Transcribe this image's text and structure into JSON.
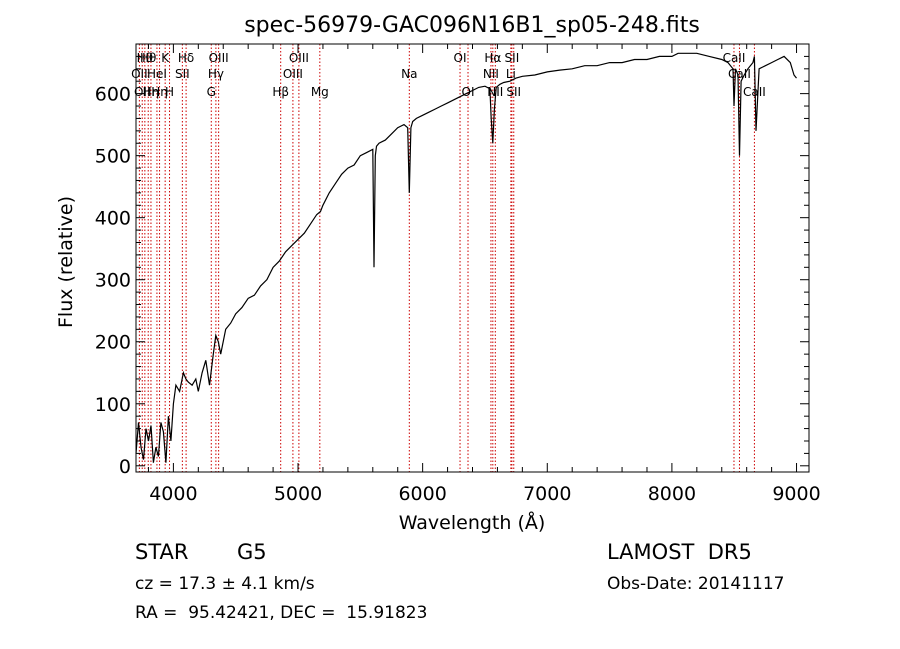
{
  "chart_data": {
    "type": "line",
    "title": "spec-56979-GAC096N16B1_sp05-248.fits",
    "xlabel": "Wavelength (Å)",
    "ylabel": "Flux (relative)",
    "xlim": [
      3700,
      9100
    ],
    "ylim": [
      -10,
      680
    ],
    "xticks": [
      4000,
      5000,
      6000,
      7000,
      8000,
      9000
    ],
    "yticks": [
      0,
      100,
      200,
      300,
      400,
      500,
      600
    ],
    "grid": false,
    "series": [
      {
        "x": [
          3700,
          3720,
          3740,
          3760,
          3780,
          3800,
          3820,
          3840,
          3860,
          3880,
          3900,
          3920,
          3940,
          3960,
          3980,
          4000,
          4020,
          4050,
          4080,
          4100,
          4120,
          4150,
          4180,
          4200,
          4230,
          4260,
          4290,
          4320,
          4340,
          4360,
          4380,
          4420,
          4460,
          4500,
          4550,
          4600,
          4650,
          4700,
          4750,
          4800,
          4850,
          4900,
          4950,
          5000,
          5050,
          5100,
          5150,
          5180,
          5200,
          5250,
          5300,
          5350,
          5400,
          5450,
          5500,
          5550,
          5600,
          5610,
          5620,
          5630,
          5650,
          5700,
          5750,
          5800,
          5850,
          5880,
          5893,
          5906,
          5920,
          5950,
          6000,
          6050,
          6100,
          6150,
          6200,
          6250,
          6300,
          6350,
          6400,
          6450,
          6500,
          6540,
          6550,
          6563,
          6576,
          6590,
          6620,
          6650,
          6700,
          6750,
          6800,
          6900,
          7000,
          7100,
          7200,
          7300,
          7400,
          7500,
          7600,
          7700,
          7800,
          7900,
          8000,
          8050,
          8100,
          8200,
          8300,
          8400,
          8450,
          8490,
          8498,
          8510,
          8530,
          8542,
          8555,
          8580,
          8610,
          8650,
          8662,
          8675,
          8700,
          8750,
          8800,
          8850,
          8900,
          8950,
          8980,
          9000
        ],
        "y": [
          20,
          70,
          30,
          10,
          60,
          40,
          65,
          5,
          30,
          15,
          70,
          55,
          5,
          80,
          40,
          100,
          130,
          120,
          150,
          140,
          135,
          130,
          140,
          120,
          150,
          170,
          130,
          180,
          210,
          200,
          180,
          220,
          230,
          245,
          255,
          270,
          275,
          290,
          300,
          320,
          330,
          345,
          355,
          365,
          375,
          390,
          405,
          410,
          420,
          440,
          455,
          470,
          480,
          485,
          500,
          505,
          510,
          320,
          500,
          515,
          520,
          525,
          535,
          545,
          550,
          545,
          440,
          545,
          555,
          560,
          565,
          570,
          575,
          580,
          585,
          590,
          595,
          600,
          605,
          610,
          612,
          608,
          560,
          520,
          575,
          610,
          615,
          618,
          620,
          625,
          628,
          630,
          635,
          638,
          640,
          645,
          645,
          650,
          650,
          655,
          655,
          660,
          660,
          665,
          665,
          665,
          660,
          655,
          650,
          640,
          580,
          640,
          630,
          500,
          620,
          630,
          640,
          650,
          660,
          540,
          640,
          645,
          650,
          655,
          660,
          650,
          630,
          625
        ]
      }
    ],
    "lines": [
      {
        "wavelength": 3727,
        "row": 1,
        "label": "OII"
      },
      {
        "wavelength": 3750,
        "row": 2,
        "label": "OII"
      },
      {
        "wavelength": 3771,
        "row": 0,
        "label": "Hθ"
      },
      {
        "wavelength": 3798,
        "row": 0,
        "label": "Hθ"
      },
      {
        "wavelength": 3820,
        "row": 2,
        "label": "Hη"
      },
      {
        "wavelength": 3868,
        "row": 1,
        "label": "HeI"
      },
      {
        "wavelength": 3889,
        "row": 2,
        "label": "Hη"
      },
      {
        "wavelength": 3934,
        "row": 0,
        "label": "K"
      },
      {
        "wavelength": 3969,
        "row": 2,
        "label": "H"
      },
      {
        "wavelength": 4072,
        "row": 1,
        "label": "SII"
      },
      {
        "wavelength": 4102,
        "row": 0,
        "label": "Hδ"
      },
      {
        "wavelength": 4304,
        "row": 2,
        "label": "G"
      },
      {
        "wavelength": 4341,
        "row": 1,
        "label": "Hγ"
      },
      {
        "wavelength": 4363,
        "row": 0,
        "label": "OIII"
      },
      {
        "wavelength": 4861,
        "row": 2,
        "label": "Hβ"
      },
      {
        "wavelength": 4959,
        "row": 1,
        "label": "OIII"
      },
      {
        "wavelength": 5007,
        "row": 0,
        "label": "OIII"
      },
      {
        "wavelength": 5175,
        "row": 2,
        "label": "Mg"
      },
      {
        "wavelength": 5893,
        "row": 1,
        "label": "Na"
      },
      {
        "wavelength": 6300,
        "row": 0,
        "label": "OI"
      },
      {
        "wavelength": 6364,
        "row": 2,
        "label": "OI"
      },
      {
        "wavelength": 6548,
        "row": 1,
        "label": "NII"
      },
      {
        "wavelength": 6563,
        "row": 0,
        "label": "Hα"
      },
      {
        "wavelength": 6583,
        "row": 2,
        "label": "NII"
      },
      {
        "wavelength": 6708,
        "row": 1,
        "label": "Li"
      },
      {
        "wavelength": 6716,
        "row": 0,
        "label": "SII"
      },
      {
        "wavelength": 6731,
        "row": 2,
        "label": "SII"
      },
      {
        "wavelength": 8498,
        "row": 0,
        "label": "CaII"
      },
      {
        "wavelength": 8542,
        "row": 1,
        "label": "CaII"
      },
      {
        "wavelength": 8662,
        "row": 2,
        "label": "CaII"
      }
    ]
  },
  "info": {
    "object_class": "STAR",
    "subclass": "G5",
    "survey": "LAMOST  DR5",
    "redshift": "cz = 17.3 ± 4.1 km/s",
    "obs_date": "Obs-Date: 20141117",
    "coords": "RA =  95.42421, DEC =  15.91823"
  },
  "colors": {
    "spectrum": "#000000",
    "line_marker": "#cc0000",
    "axes": "#000000"
  }
}
